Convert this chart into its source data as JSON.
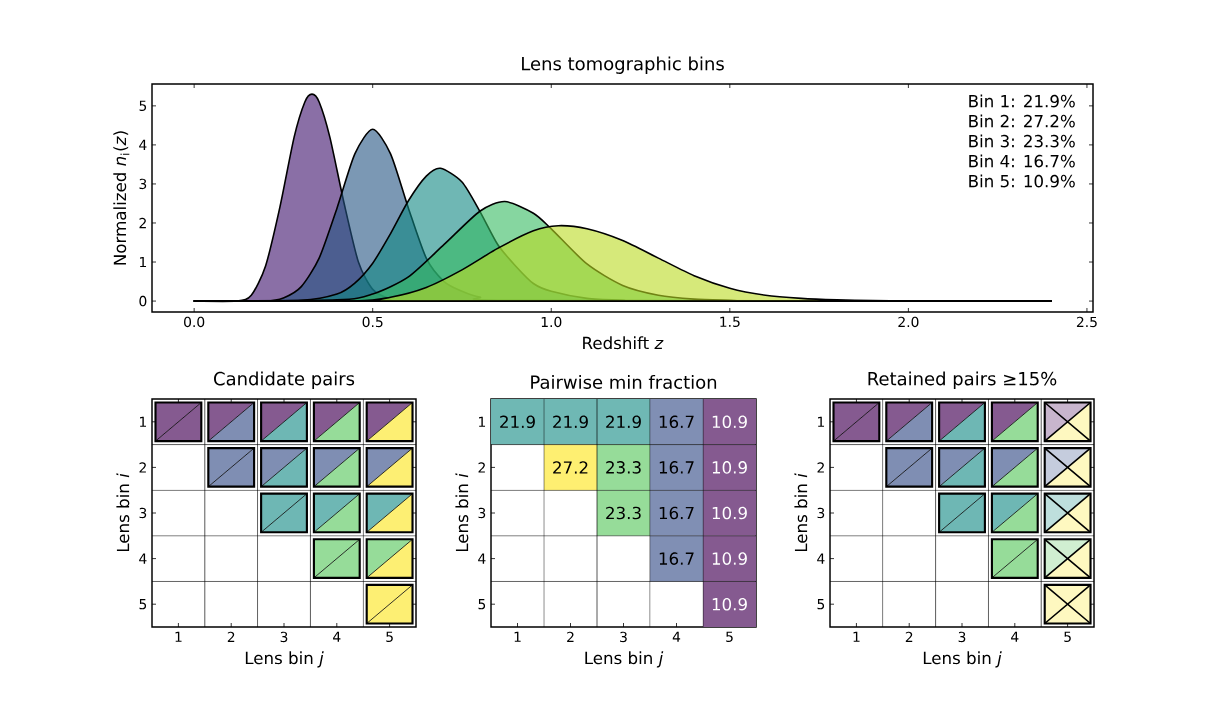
{
  "chart_data": [
    {
      "type": "area",
      "title": "Lens tomographic bins",
      "xlabel": "Redshift *z*",
      "ylabel": "Normalized *n*$_{i}$(*z*)",
      "xlim": [
        -0.118,
        2.517
      ],
      "ylim": [
        -0.28,
        5.56
      ],
      "xticks": [
        {
          "value": 0,
          "label": "0.0"
        },
        {
          "value": 0.5,
          "label": "0.5"
        },
        {
          "value": 1,
          "label": "1.0"
        },
        {
          "value": 1.5,
          "label": "1.5"
        },
        {
          "value": 2,
          "label": "2.0"
        },
        {
          "value": 2.5,
          "label": "2.5"
        }
      ],
      "yticks": [
        0,
        1,
        2,
        3,
        4,
        5
      ],
      "annotations": [
        "Bin 1: 21.9%",
        "Bin 2: 27.2%",
        "Bin 3: 23.3%",
        "Bin 4: 16.7%",
        "Bin 5: 10.9%"
      ],
      "series": [
        {
          "color": "#8a6fa6",
          "x": [
            0,
            0.12,
            0.16,
            0.2,
            0.24,
            0.28,
            0.31,
            0.33,
            0.35,
            0.38,
            0.42,
            0.46,
            0.5,
            0.55,
            0.6,
            2.4
          ],
          "values": [
            0,
            0,
            0.15,
            0.9,
            2.4,
            4.2,
            5.1,
            5.3,
            5.1,
            4.2,
            2.5,
            1.0,
            0.3,
            0.05,
            0,
            0
          ]
        },
        {
          "color": "#7b98b4",
          "x": [
            0,
            0.2,
            0.25,
            0.3,
            0.35,
            0.4,
            0.45,
            0.5,
            0.55,
            0.6,
            0.65,
            0.7,
            0.75,
            0.8,
            0.9,
            2.4
          ],
          "values": [
            0,
            0,
            0.08,
            0.37,
            1.1,
            2.38,
            3.77,
            4.4,
            3.77,
            2.38,
            1.1,
            0.5,
            0.25,
            0.1,
            0.02,
            0
          ]
        },
        {
          "color": "#6fb7b4",
          "x": [
            0,
            0.3,
            0.4,
            0.45,
            0.5,
            0.55,
            0.6,
            0.65,
            0.69,
            0.75,
            0.8,
            0.85,
            0.9,
            0.95,
            1.0,
            1.1,
            1.2,
            1.3,
            2.4
          ],
          "values": [
            0,
            0.02,
            0.18,
            0.46,
            0.97,
            1.73,
            2.57,
            3.2,
            3.4,
            3.05,
            2.3,
            1.45,
            0.9,
            0.45,
            0.25,
            0.07,
            0.02,
            0,
            0
          ]
        },
        {
          "color": "#86d6a0",
          "x": [
            0,
            0.4,
            0.5,
            0.6,
            0.7,
            0.8,
            0.87,
            0.95,
            1.0,
            1.1,
            1.2,
            1.3,
            1.4,
            1.5,
            1.6,
            2.4
          ],
          "values": [
            0,
            0.03,
            0.18,
            0.62,
            1.45,
            2.3,
            2.55,
            2.25,
            1.85,
            0.95,
            0.4,
            0.15,
            0.05,
            0.02,
            0,
            0
          ]
        },
        {
          "color": "#d6e97a",
          "x": [
            0,
            0.45,
            0.55,
            0.65,
            0.75,
            0.85,
            0.95,
            1.02,
            1.1,
            1.2,
            1.3,
            1.4,
            1.5,
            1.6,
            1.7,
            1.8,
            1.9,
            2.0,
            2.2,
            2.4
          ],
          "values": [
            0,
            0,
            0.1,
            0.35,
            0.8,
            1.35,
            1.8,
            1.93,
            1.85,
            1.55,
            1.1,
            0.65,
            0.33,
            0.15,
            0.07,
            0.03,
            0.01,
            0,
            0,
            0
          ]
        }
      ]
    },
    {
      "type": "heatmap",
      "title": "Candidate pairs",
      "xlabel": "Lens bin *j*",
      "ylabel": "Lens bin *i*",
      "categories": [
        "1",
        "2",
        "3",
        "4",
        "5"
      ],
      "y_categories": [
        "1",
        "2",
        "3",
        "4",
        "5"
      ],
      "colors": [
        "#855a90",
        "#7f8eb3",
        "#6eb7b4",
        "#96dc99",
        "#fdef73"
      ],
      "cells": [
        [
          true,
          true,
          true,
          true,
          true
        ],
        [
          null,
          true,
          true,
          true,
          true
        ],
        [
          null,
          null,
          true,
          true,
          true
        ],
        [
          null,
          null,
          null,
          true,
          true
        ],
        [
          null,
          null,
          null,
          null,
          true
        ]
      ]
    },
    {
      "type": "heatmap",
      "title": "Pairwise min fraction",
      "xlabel": "Lens bin *j*",
      "ylabel": "Lens bin *i*",
      "categories": [
        "1",
        "2",
        "3",
        "4",
        "5"
      ],
      "y_categories": [
        "1",
        "2",
        "3",
        "4",
        "5"
      ],
      "data_labels": true,
      "cells": [
        [
          21.9,
          21.9,
          21.9,
          16.7,
          10.9
        ],
        [
          null,
          27.2,
          23.3,
          16.7,
          10.9
        ],
        [
          null,
          null,
          23.3,
          16.7,
          10.9
        ],
        [
          null,
          null,
          null,
          16.7,
          10.9
        ],
        [
          null,
          null,
          null,
          null,
          10.9
        ]
      ]
    },
    {
      "type": "heatmap",
      "title": "Retained pairs ≥15%",
      "xlabel": "Lens bin *j*",
      "ylabel": "Lens bin *i*",
      "categories": [
        "1",
        "2",
        "3",
        "4",
        "5"
      ],
      "y_categories": [
        "1",
        "2",
        "3",
        "4",
        "5"
      ],
      "colors": [
        "#855a90",
        "#7f8eb3",
        "#6eb7b4",
        "#96dc99",
        "#fdef73"
      ],
      "cells": [
        [
          true,
          true,
          true,
          true,
          false
        ],
        [
          null,
          true,
          true,
          true,
          false
        ],
        [
          null,
          null,
          true,
          true,
          false
        ],
        [
          null,
          null,
          null,
          true,
          false
        ],
        [
          null,
          null,
          null,
          null,
          false
        ]
      ]
    }
  ]
}
